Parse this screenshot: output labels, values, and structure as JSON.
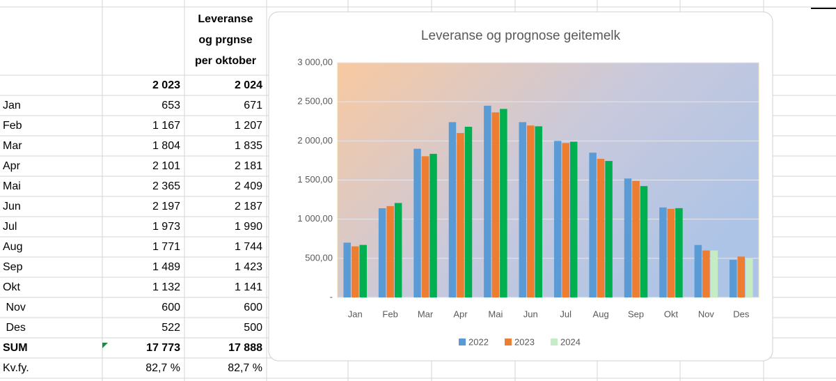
{
  "table": {
    "header_lines": [
      "Leveranse",
      "og prgnse",
      "per oktober"
    ],
    "rows": [
      [
        "",
        "2 023",
        "2 024"
      ],
      [
        "Jan",
        "653",
        "671"
      ],
      [
        "Feb",
        "1 167",
        "1 207"
      ],
      [
        "Mar",
        "1 804",
        "1 835"
      ],
      [
        "Apr",
        "2 101",
        "2 181"
      ],
      [
        "Mai",
        "2 365",
        "2 409"
      ],
      [
        "Jun",
        "2 197",
        "2 187"
      ],
      [
        "Jul",
        "1 973",
        "1 990"
      ],
      [
        "Aug",
        "1 771",
        "1 744"
      ],
      [
        "Sep",
        "1 489",
        "1 423"
      ],
      [
        "Okt",
        "1 132",
        "1 141"
      ],
      [
        " Nov",
        "600",
        "600"
      ],
      [
        " Des",
        "522",
        "500"
      ],
      [
        "SUM",
        "17 773",
        "17 888"
      ],
      [
        "Kv.fy.",
        "82,7 %",
        "82,7 %"
      ]
    ],
    "bold_rows": [
      0,
      13
    ],
    "highlight_color": "#ff0000",
    "highlight_cells": [
      [
        11,
        2
      ],
      [
        12,
        2
      ]
    ]
  },
  "chart_data": {
    "type": "bar",
    "title": "Leveranse og prognose geitemelk",
    "categories": [
      "Jan",
      "Feb",
      "Mar",
      "Apr",
      "Mai",
      "Jun",
      "Jul",
      "Aug",
      "Sep",
      "Okt",
      "Nov",
      "Des"
    ],
    "series": [
      {
        "name": "2022",
        "color": "#5b9bd5",
        "values": [
          700,
          1140,
          1900,
          2240,
          2450,
          2240,
          2000,
          1850,
          1520,
          1150,
          670,
          480
        ]
      },
      {
        "name": "2023",
        "color": "#ed7d31",
        "values": [
          653,
          1167,
          1804,
          2101,
          2365,
          2197,
          1973,
          1771,
          1489,
          1132,
          600,
          522
        ]
      },
      {
        "name": "2024",
        "color": "#00b050",
        "values": [
          671,
          1207,
          1835,
          2181,
          2409,
          2187,
          1990,
          1744,
          1423,
          1141,
          600,
          500
        ],
        "point_colors": [
          "#00b050",
          "#00b050",
          "#00b050",
          "#00b050",
          "#00b050",
          "#00b050",
          "#00b050",
          "#00b050",
          "#00b050",
          "#00b050",
          "#c6ecc6",
          "#c6ecc6"
        ]
      }
    ],
    "ylim": [
      0,
      3000
    ],
    "yticks": [
      {
        "value": 0,
        "label": "-"
      },
      {
        "value": 500,
        "label": "500,00"
      },
      {
        "value": 1000,
        "label": "1 000,00"
      },
      {
        "value": 1500,
        "label": "1 500,00"
      },
      {
        "value": 2000,
        "label": "2 000,00"
      },
      {
        "value": 2500,
        "label": "2 500,00"
      },
      {
        "value": 3000,
        "label": "3 000,00"
      }
    ],
    "grid": true,
    "legend": "bottom"
  }
}
